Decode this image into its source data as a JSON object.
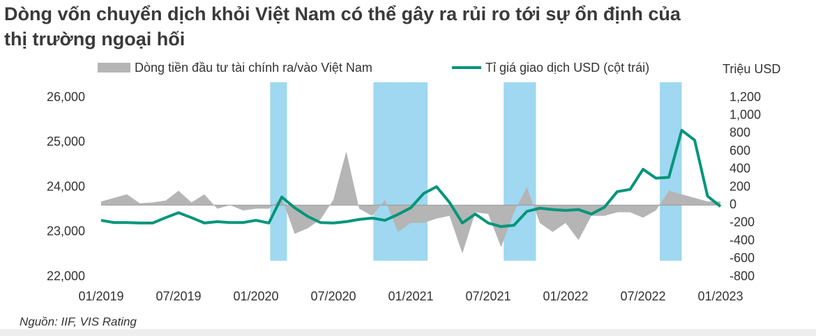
{
  "chart_data": {
    "type": "line-area",
    "title": "Dòng vốn chuyển dịch khỏi Việt Nam có thể gây ra rủi ro tới sự ổn định của thị trường ngoại hối",
    "y2_label": "Triệu USD",
    "source": "Nguồn: IIF, VIS Rating",
    "categories": [
      "01/2019",
      null,
      null,
      null,
      null,
      null,
      "07/2019",
      null,
      null,
      null,
      null,
      null,
      "01/2020",
      null,
      null,
      null,
      null,
      null,
      "07/2020",
      null,
      null,
      null,
      null,
      null,
      "01/2021",
      null,
      null,
      null,
      null,
      null,
      "07/2021",
      null,
      null,
      null,
      null,
      null,
      "01/2022",
      null,
      null,
      null,
      null,
      null,
      "07/2022",
      null,
      null,
      null,
      null,
      null,
      "01/2023"
    ],
    "series": [
      {
        "name": "Dòng tiền đầu tư tài chính ra/vào Việt Nam",
        "color": "#b5b5b5",
        "kind": "area",
        "axis": "y2",
        "values": [
          40,
          80,
          120,
          20,
          30,
          50,
          160,
          30,
          120,
          -40,
          0,
          -60,
          -40,
          -40,
          80,
          -320,
          -260,
          -160,
          60,
          600,
          -40,
          -120,
          60,
          -300,
          -200,
          -200,
          -150,
          -120,
          -540,
          -80,
          -100,
          -470,
          -80,
          200,
          -200,
          -300,
          -200,
          -390,
          -120,
          -120,
          -80,
          -80,
          -140,
          -60,
          160,
          120,
          80,
          40,
          40
        ]
      },
      {
        "name": "Tỉ giá giao dịch USD (cột trái)",
        "color": "#00957a",
        "kind": "line",
        "values": [
          23260,
          23210,
          23210,
          23200,
          23200,
          23320,
          23430,
          23320,
          23200,
          23230,
          23210,
          23210,
          23260,
          23200,
          23780,
          23540,
          23350,
          23210,
          23200,
          23230,
          23280,
          23310,
          23260,
          23390,
          23540,
          23860,
          24010,
          23660,
          23200,
          23400,
          23200,
          23120,
          23150,
          23460,
          23530,
          23500,
          23480,
          23500,
          23400,
          23550,
          23900,
          23950,
          24400,
          24200,
          24220,
          25270,
          25050,
          23800,
          23570
        ]
      }
    ],
    "highlight_ranges": [
      [
        13.1,
        14.4
      ],
      [
        21.1,
        25.3
      ],
      [
        31.2,
        33.7
      ],
      [
        43.3,
        45.0
      ]
    ],
    "highlight_color": "#9fd8f0",
    "ylim": [
      22000,
      26000
    ],
    "yticks": [
      {
        "value": 22000,
        "label": "22,000"
      },
      {
        "value": 23000,
        "label": "23,000"
      },
      {
        "value": 24000,
        "label": "24,000"
      },
      {
        "value": 25000,
        "label": "25,000"
      },
      {
        "value": 26000,
        "label": "26,000"
      }
    ],
    "y2lim": [
      -800,
      1200
    ],
    "y2ticks": [
      -800,
      -600,
      -400,
      -200,
      0,
      200,
      400,
      600,
      800,
      {
        "value": 1000,
        "label": "1,000"
      },
      {
        "value": 1200,
        "label": "1,200"
      }
    ],
    "grid": false
  }
}
